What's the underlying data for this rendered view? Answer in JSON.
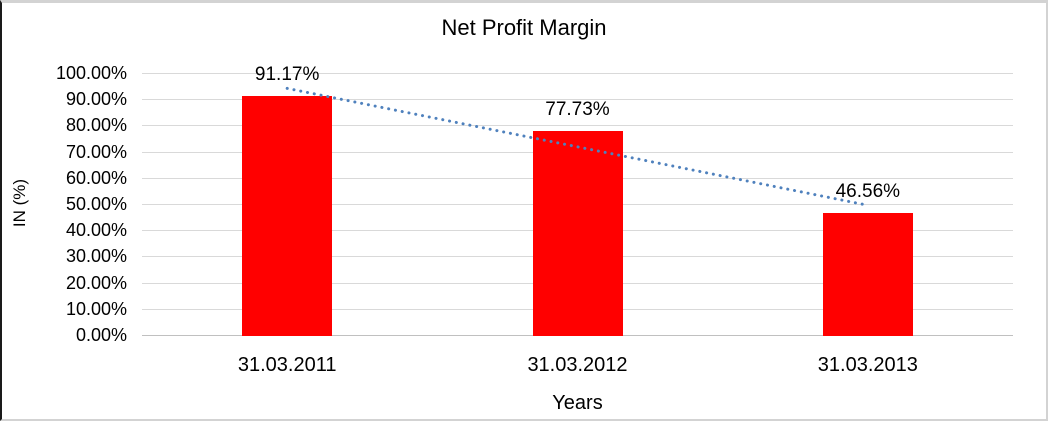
{
  "frame": {
    "left_border_color": "#1a1a1a",
    "rule_color": "#d3d3d3"
  },
  "chart_data": {
    "type": "bar",
    "title": "Net Profit Margin",
    "categories": [
      "31.03.2011",
      "31.03.2012",
      "31.03.2013"
    ],
    "values": [
      91.17,
      77.73,
      46.56
    ],
    "data_labels": [
      "91.17%",
      "77.73%",
      "46.56%"
    ],
    "xlabel": "Years",
    "ylabel": "IN (%)",
    "ylim": [
      0,
      100
    ],
    "ytick_step": 10,
    "ytick_labels": [
      "0.00%",
      "10.00%",
      "20.00%",
      "30.00%",
      "40.00%",
      "50.00%",
      "60.00%",
      "70.00%",
      "80.00%",
      "90.00%",
      "100.00%"
    ],
    "grid": true,
    "legend": "none",
    "bar_color": "#ff0000",
    "gridline_color": "#d9d9d9",
    "axisline_color": "#c0c0c0",
    "text_color": "#000000",
    "trendline": {
      "type": "linear",
      "style": "dotted",
      "color": "#4f81bd",
      "fit_values": [
        94.13,
        71.82,
        49.51
      ]
    }
  }
}
